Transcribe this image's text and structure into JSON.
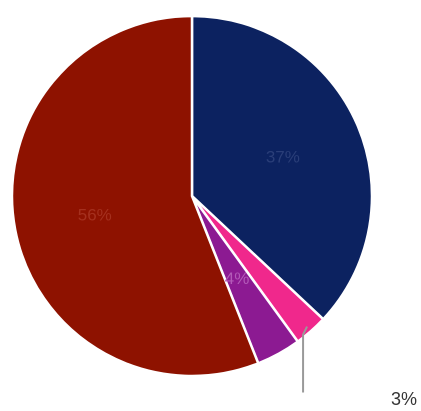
{
  "chart_data": {
    "type": "pie",
    "title": "",
    "legend": "none",
    "slices": [
      {
        "label": "37%",
        "value": 37,
        "color": "#0c2260"
      },
      {
        "label": "3%",
        "value": 3,
        "color": "#f0288c"
      },
      {
        "label": "4%",
        "value": 4,
        "color": "#8c1a92"
      },
      {
        "label": "56%",
        "value": 56,
        "color": "#8e1200"
      }
    ]
  }
}
